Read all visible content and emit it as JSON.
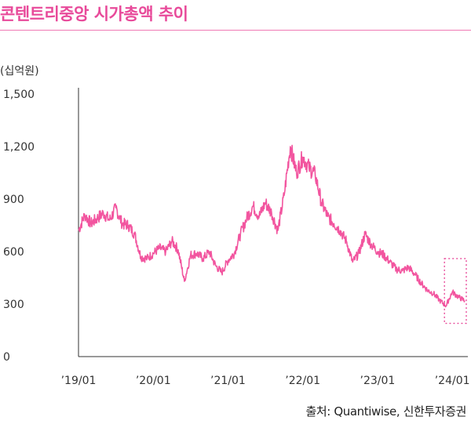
{
  "header": {
    "title": "콘텐트리중앙 시가총액 추이",
    "unit_label": "(십억원)"
  },
  "source": "출처: Quantiwise, 신한투자증권",
  "colors": {
    "accent": "#e84a9a",
    "series": "#f2559f",
    "axis": "#333333"
  },
  "chart_data": {
    "type": "line",
    "title": "콘텐트리중앙 시가총액 추이",
    "ylabel": "(십억원)",
    "xlabel": "",
    "ylim": [
      0,
      1500
    ],
    "yticks": [
      0,
      300,
      600,
      900,
      1200,
      1500
    ],
    "ytick_labels": [
      "0",
      "300",
      "600",
      "900",
      "1,200",
      "1,500"
    ],
    "xticks": [
      "’19/01",
      "’20/01",
      "’21/01",
      "’22/01",
      "’23/01",
      "’24/01"
    ],
    "x_range": [
      "2019-01",
      "2024-03"
    ],
    "grid": false,
    "highlight_box": {
      "x_from": "2023-12",
      "x_to": "2024-03",
      "y_from": 190,
      "y_to": 560
    },
    "series": [
      {
        "values": [
          [
            "2019-01",
            720
          ],
          [
            "2019-02",
            810
          ],
          [
            "2019-03",
            760
          ],
          [
            "2019-04",
            790
          ],
          [
            "2019-05",
            820
          ],
          [
            "2019-06",
            780
          ],
          [
            "2019-07",
            850
          ],
          [
            "2019-08",
            760
          ],
          [
            "2019-09",
            750
          ],
          [
            "2019-10",
            700
          ],
          [
            "2019-11",
            570
          ],
          [
            "2019-12",
            560
          ],
          [
            "2020-01",
            590
          ],
          [
            "2020-02",
            620
          ],
          [
            "2020-03",
            600
          ],
          [
            "2020-04",
            660
          ],
          [
            "2020-05",
            610
          ],
          [
            "2020-06",
            430
          ],
          [
            "2020-07",
            580
          ],
          [
            "2020-08",
            590
          ],
          [
            "2020-09",
            560
          ],
          [
            "2020-10",
            600
          ],
          [
            "2020-11",
            520
          ],
          [
            "2020-12",
            480
          ],
          [
            "2021-01",
            550
          ],
          [
            "2021-02",
            590
          ],
          [
            "2021-03",
            700
          ],
          [
            "2021-04",
            790
          ],
          [
            "2021-05",
            860
          ],
          [
            "2021-06",
            800
          ],
          [
            "2021-07",
            880
          ],
          [
            "2021-08",
            820
          ],
          [
            "2021-09",
            720
          ],
          [
            "2021-10",
            920
          ],
          [
            "2021-11",
            1200
          ],
          [
            "2021-12",
            1050
          ],
          [
            "2022-01",
            1140
          ],
          [
            "2022-02",
            1080
          ],
          [
            "2022-03",
            1040
          ],
          [
            "2022-04",
            880
          ],
          [
            "2022-05",
            800
          ],
          [
            "2022-06",
            760
          ],
          [
            "2022-07",
            720
          ],
          [
            "2022-08",
            660
          ],
          [
            "2022-09",
            540
          ],
          [
            "2022-10",
            590
          ],
          [
            "2022-11",
            700
          ],
          [
            "2022-12",
            640
          ],
          [
            "2023-01",
            600
          ],
          [
            "2023-02",
            580
          ],
          [
            "2023-03",
            540
          ],
          [
            "2023-04",
            500
          ],
          [
            "2023-05",
            490
          ],
          [
            "2023-06",
            510
          ],
          [
            "2023-07",
            470
          ],
          [
            "2023-08",
            420
          ],
          [
            "2023-09",
            380
          ],
          [
            "2023-10",
            360
          ],
          [
            "2023-11",
            320
          ],
          [
            "2023-12",
            290
          ],
          [
            "2024-01",
            370
          ],
          [
            "2024-02",
            340
          ],
          [
            "2024-03",
            320
          ]
        ]
      }
    ]
  }
}
